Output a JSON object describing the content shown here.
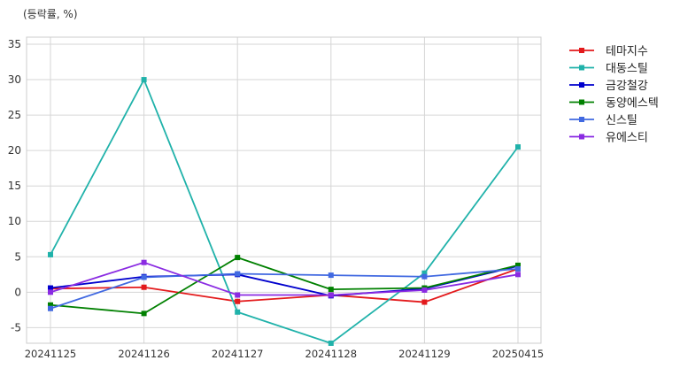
{
  "chart_data": {
    "type": "line",
    "unit_label": "(등락률, %)",
    "categories": [
      "20241125",
      "20241126",
      "20241127",
      "20241128",
      "20241129",
      "20250415"
    ],
    "ylim": [
      -7.2,
      36
    ],
    "yticks": [
      -5,
      0,
      5,
      10,
      15,
      20,
      25,
      30,
      35
    ],
    "grid": true,
    "legend_position": "right, outside plot",
    "series": [
      {
        "name": "테마지수",
        "color": "#e31a1c",
        "values": [
          0.5,
          0.7,
          -1.3,
          -0.4,
          -1.4,
          3.3
        ]
      },
      {
        "name": "대동스틸",
        "color": "#20b2aa",
        "values": [
          5.3,
          30.0,
          -2.8,
          -7.2,
          2.7,
          20.5
        ]
      },
      {
        "name": "금강철강",
        "color": "#0000cd",
        "values": [
          0.6,
          2.2,
          2.5,
          -0.5,
          0.5,
          3.7
        ]
      },
      {
        "name": "동양에스텍",
        "color": "#008000",
        "values": [
          -1.8,
          -3.0,
          4.9,
          0.4,
          0.6,
          3.8
        ]
      },
      {
        "name": "신스틸",
        "color": "#4169e1",
        "values": [
          -2.3,
          2.1,
          2.6,
          2.4,
          2.2,
          3.3
        ]
      },
      {
        "name": "유에스티",
        "color": "#8a2be2",
        "values": [
          0.0,
          4.2,
          -0.4,
          -0.4,
          0.3,
          2.5
        ]
      }
    ]
  }
}
